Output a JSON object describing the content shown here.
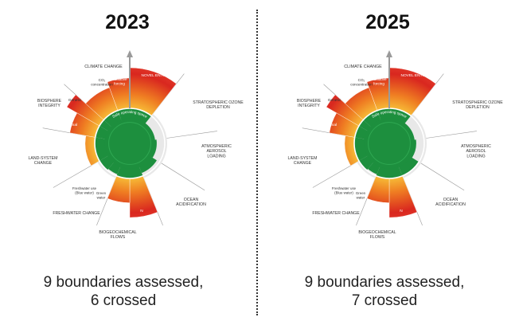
{
  "panels": [
    {
      "year": "2023",
      "caption_line1": "9 boundaries assessed,",
      "caption_line2": "6 crossed",
      "labels": {
        "climate_change": "CLIMATE CHANGE",
        "co2": [
          "CO₂",
          "concentration"
        ],
        "radiative": [
          "Radiative",
          "forcing"
        ],
        "novel_entities": "NOVEL ENTITIES",
        "stratospheric": [
          "STRATOSPHERIC OZONE",
          "DEPLETION"
        ],
        "atmospheric": [
          "ATMOSPHERIC",
          "AEROSOL",
          "LOADING"
        ],
        "ocean": [
          "OCEAN",
          "ACIDIFICATION"
        ],
        "biogeochemical": [
          "BIOGEOCHEMICAL",
          "FLOWS"
        ],
        "p": "P",
        "n": "N",
        "freshwater_change": "FRESHWATER CHANGE",
        "freshwater_use": [
          "Freshwater use",
          "(Blue water)"
        ],
        "green_water": [
          "Green",
          "water"
        ],
        "land_system": [
          "LAND-SYSTEM",
          "CHANGE"
        ],
        "biosphere": [
          "BIOSPHERE",
          "INTEGRITY"
        ],
        "genetic": "Genetic",
        "functional": "Functional",
        "safe_space": "Safe operating space"
      }
    },
    {
      "year": "2025",
      "caption_line1": "9 boundaries assessed,",
      "caption_line2": "7 crossed",
      "labels": {
        "climate_change": "CLIMATE CHANGE",
        "co2": [
          "CO₂",
          "concentration"
        ],
        "radiative": [
          "Radiative",
          "forcing"
        ],
        "novel_entities": "NOVEL ENTITIES",
        "stratospheric": [
          "STRATOSPHERIC OZONE",
          "DEPLETION"
        ],
        "atmospheric": [
          "ATMOSPHERIC",
          "AEROSOL",
          "LOADING"
        ],
        "ocean": [
          "OCEAN",
          "ACIDIFICATION"
        ],
        "biogeochemical": [
          "BIOGEOCHEMICAL",
          "FLOWS"
        ],
        "p": "P",
        "n": "N",
        "freshwater_change": "FRESHWATER CHANGE",
        "freshwater_use": [
          "Freshwater use",
          "(Blue water)"
        ],
        "green_water": [
          "Green",
          "water"
        ],
        "land_system": [
          "LAND-SYSTEM",
          "CHANGE"
        ],
        "biosphere": [
          "BIOSPHERE",
          "INTEGRITY"
        ],
        "genetic": "Genetic",
        "functional": "Functional",
        "safe_space": "Safe operating space"
      }
    }
  ],
  "colors": {
    "safe_green": "#1d8f3e",
    "zone_yellow": "#f7c23a",
    "zone_orange": "#ef7d22",
    "zone_red": "#d9271f",
    "boundary_ring": "#ffffff",
    "axis_gray": "#999999"
  },
  "segments": [
    {
      "id": "co2",
      "level": 0.78
    },
    {
      "id": "radiative",
      "level": 0.86
    },
    {
      "id": "novel_entities",
      "level": 1.0
    },
    {
      "id": "stratospheric",
      "level": 0.18
    },
    {
      "id": "atmospheric",
      "level": 0.22
    },
    {
      "id": "ocean_2023",
      "level": 0.36
    },
    {
      "id": "ocean_2025",
      "level": 0.43
    },
    {
      "id": "n",
      "level": 0.98
    },
    {
      "id": "p",
      "level": 0.78
    },
    {
      "id": "green_water",
      "level": 0.4
    },
    {
      "id": "blue_water",
      "level": 0.44
    },
    {
      "id": "land_system",
      "level": 0.58
    },
    {
      "id": "functional",
      "level": 0.8
    },
    {
      "id": "genetic",
      "level": 0.96
    }
  ]
}
